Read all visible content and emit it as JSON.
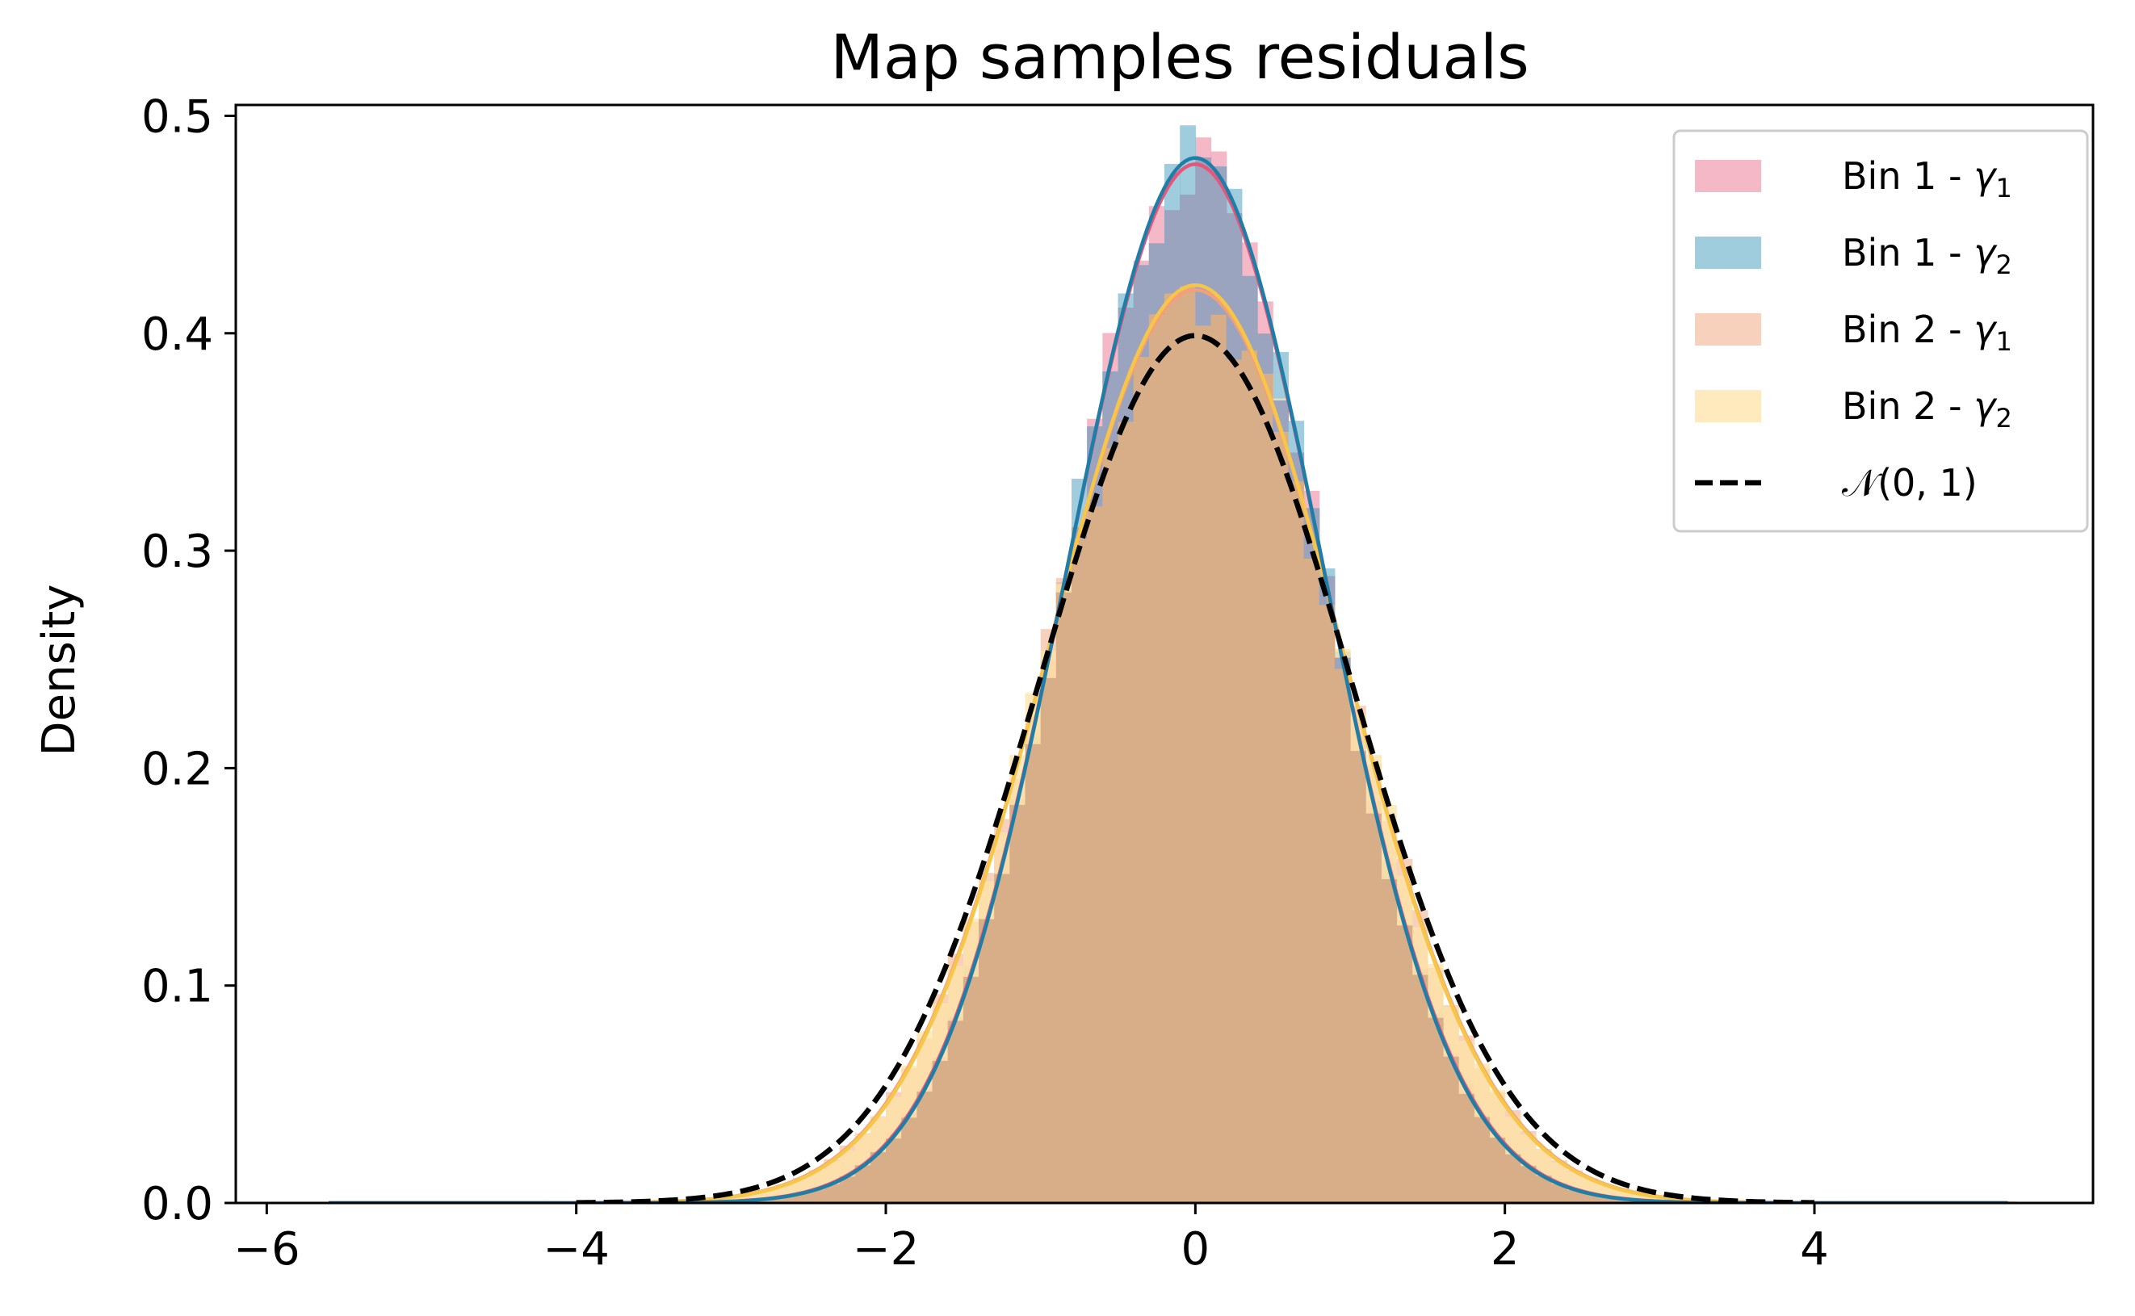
{
  "chart_data": {
    "type": "histogram",
    "title": "Map samples residuals",
    "xlabel": "",
    "ylabel": "Density",
    "xlim": [
      -6.2,
      5.8
    ],
    "ylim": [
      0,
      0.505
    ],
    "xticks": [
      -6,
      -4,
      -2,
      0,
      2,
      4
    ],
    "xtick_labels": [
      "−6",
      "−4",
      "−2",
      "0",
      "2",
      "4"
    ],
    "yticks": [
      0.0,
      0.1,
      0.2,
      0.3,
      0.4,
      0.5
    ],
    "ytick_labels": [
      "0.0",
      "0.1",
      "0.2",
      "0.3",
      "0.4",
      "0.5"
    ],
    "grid": false,
    "legend_position": "top-right",
    "series": [
      {
        "name": "Bin 1 - γ₁",
        "label_text": "Bin 1 - ",
        "label_symbol": "γ",
        "label_sub": "1",
        "kind": "hist+fit",
        "mean": 0.0,
        "std": 0.835,
        "range": [
          -5.6,
          5.25
        ],
        "color": "#f0a0b4",
        "alpha": 0.75,
        "line_color": "#e5577a"
      },
      {
        "name": "Bin 1 - γ₂",
        "label_text": "Bin 1 - ",
        "label_symbol": "γ",
        "label_sub": "2",
        "kind": "hist+fit",
        "mean": 0.0,
        "std": 0.83,
        "range": [
          -5.6,
          5.25
        ],
        "color": "#7fbcd3",
        "alpha": 0.75,
        "line_color": "#1f7ea7"
      },
      {
        "name": "Bin 2 - γ₁",
        "label_text": "Bin 2 - ",
        "label_symbol": "γ",
        "label_sub": "1",
        "kind": "hist+fit",
        "mean": 0.0,
        "std": 0.95,
        "range": [
          -5.6,
          5.25
        ],
        "color": "#f6c1a6",
        "alpha": 0.75,
        "line_color": "#f3a07a"
      },
      {
        "name": "Bin 2 - γ₂",
        "label_text": "Bin 2 - ",
        "label_symbol": "γ",
        "label_sub": "2",
        "kind": "hist+fit",
        "mean": 0.0,
        "std": 0.945,
        "range": [
          -5.6,
          5.25
        ],
        "color": "#fde3a6",
        "alpha": 0.75,
        "line_color": "#f7c548"
      },
      {
        "name": "𝒩(0, 1)",
        "label_text": "𝒩(0, 1)",
        "label_symbol": "",
        "label_sub": "",
        "kind": "pdf",
        "mean": 0.0,
        "std": 1.0,
        "range": [
          -4.0,
          4.0
        ],
        "color": "#000000",
        "dashed": true
      }
    ],
    "hist_overlap_color": "#d8ae89",
    "hist_peak_overlap_color": "#9aa4bf",
    "bin_width": 0.1
  }
}
